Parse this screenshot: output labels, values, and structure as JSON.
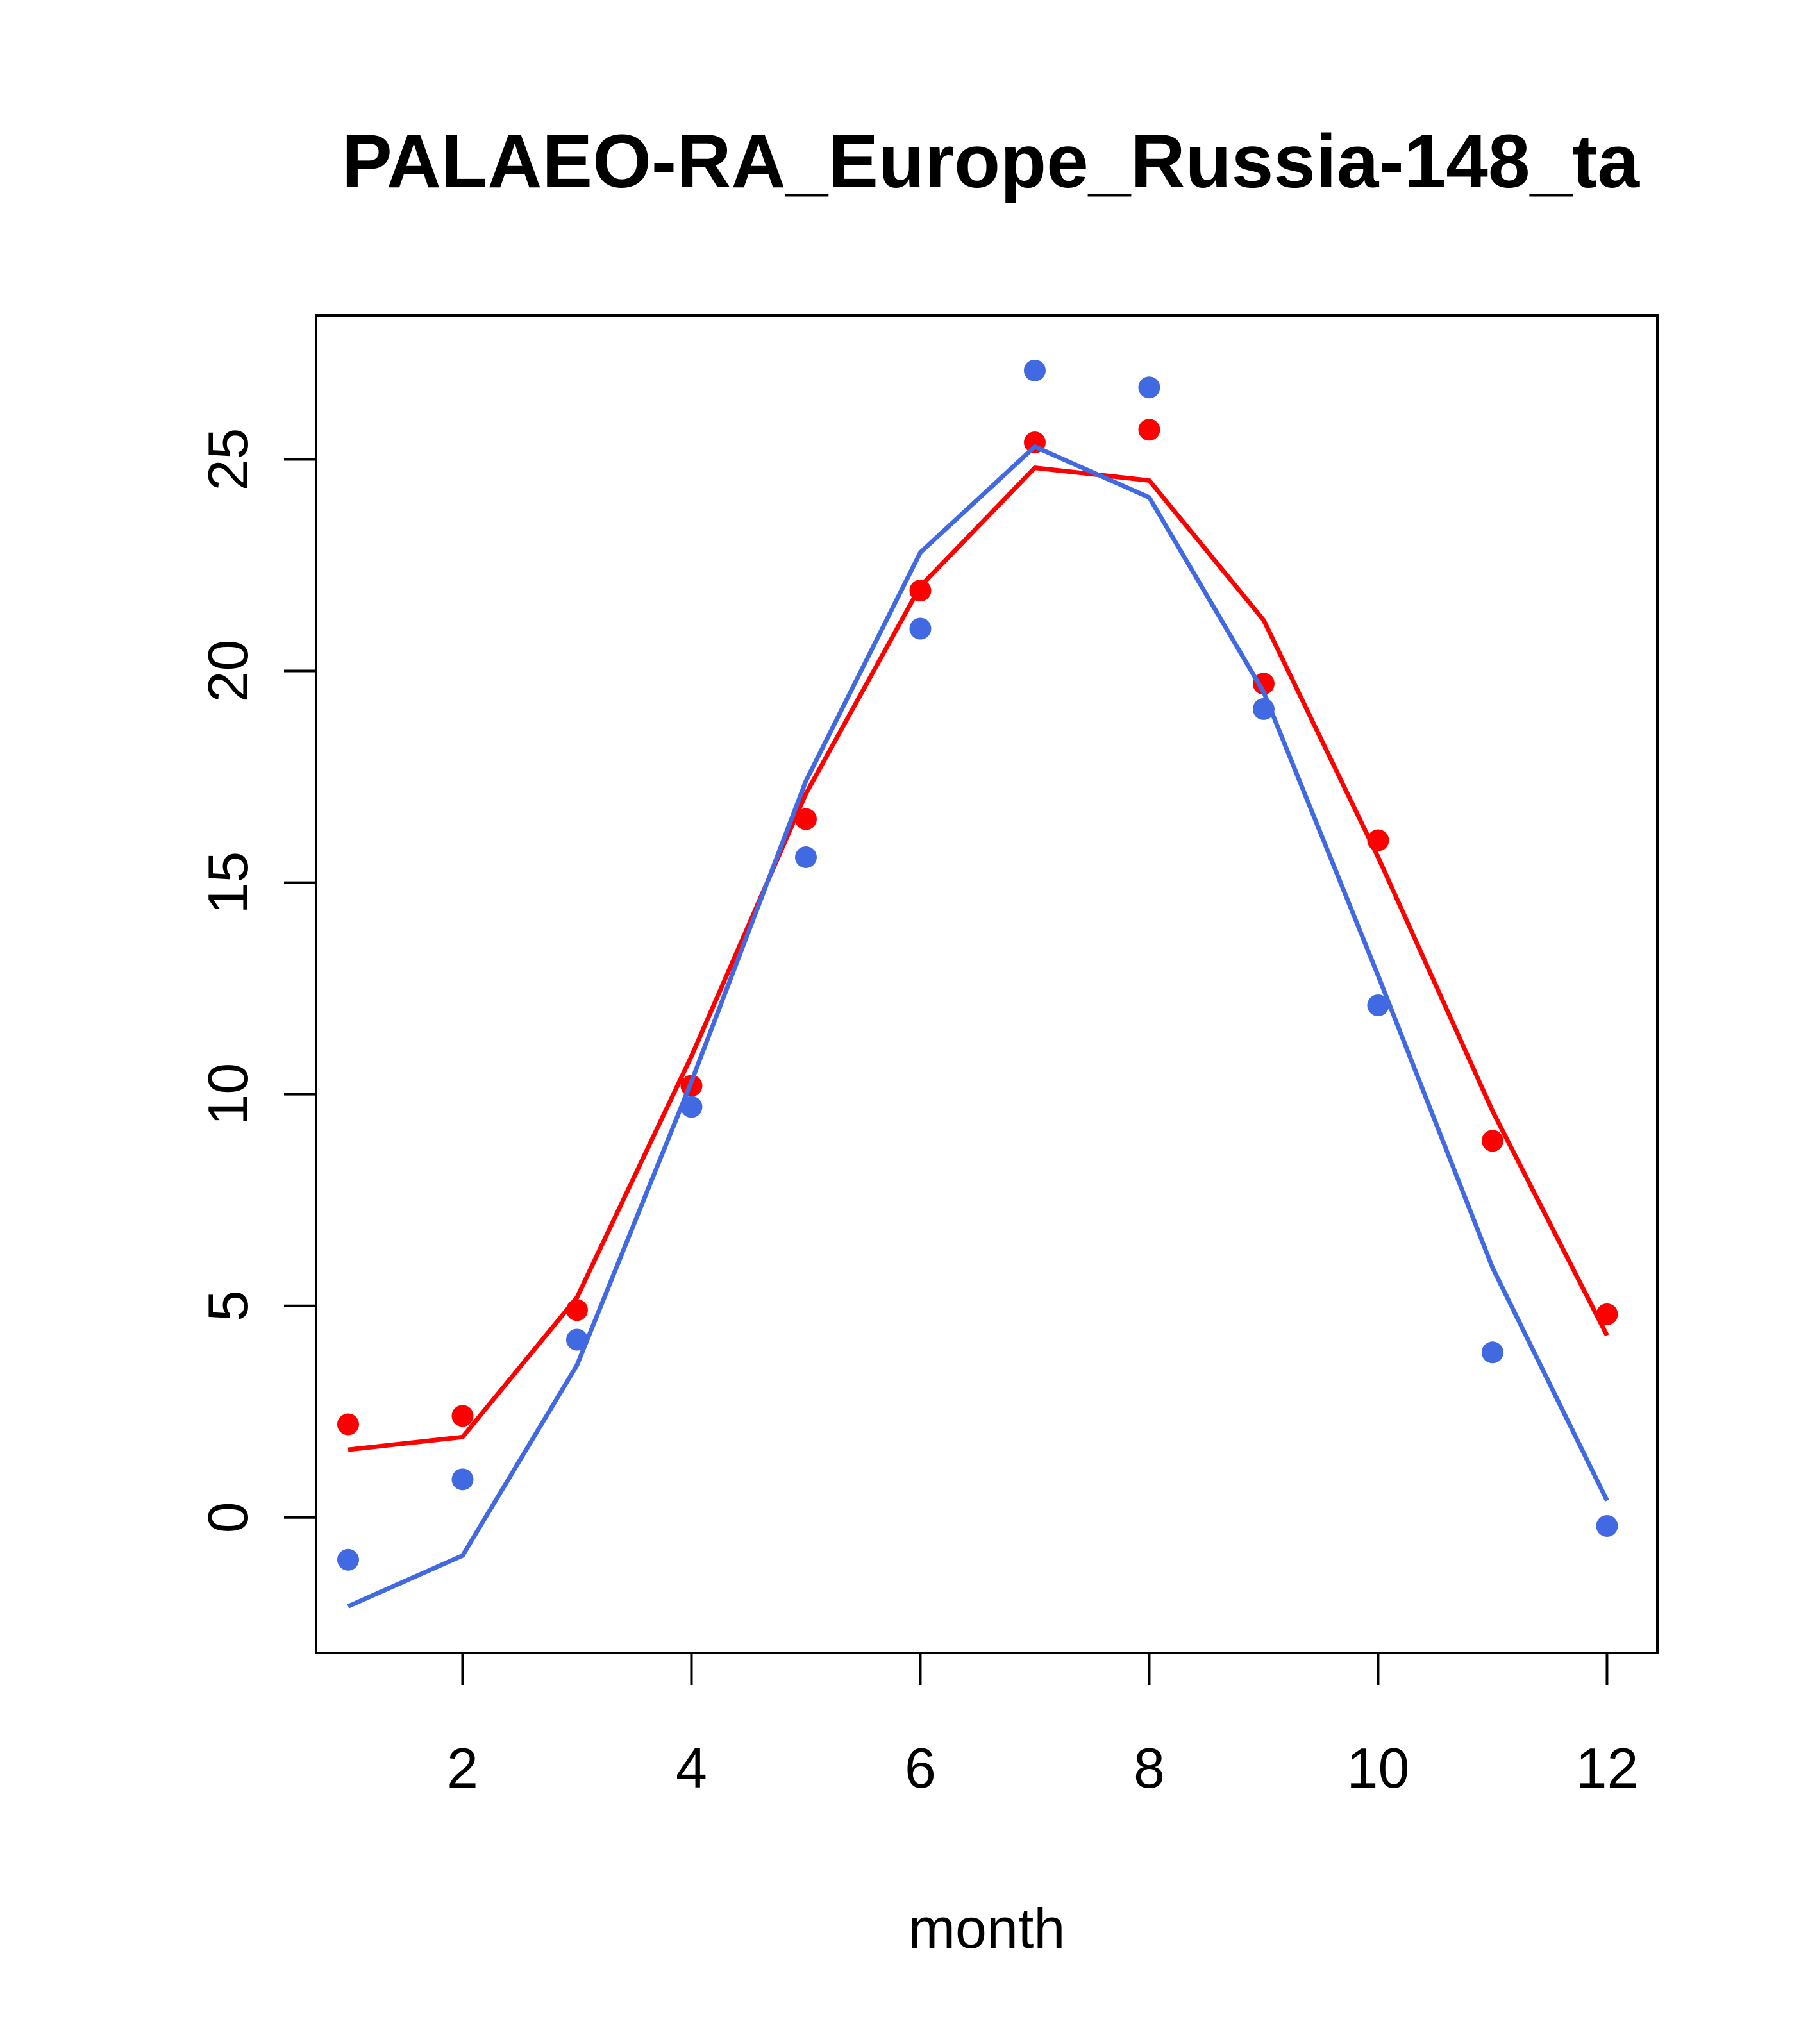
{
  "chart_data": {
    "type": "line",
    "title": "PALAEO-RA_Europe_Russia-148_ta",
    "xlabel": "month",
    "ylabel": "",
    "xlim": [
      0.72,
      12.44
    ],
    "ylim": [
      -3.2,
      28.4
    ],
    "x_ticks": [
      2,
      4,
      6,
      8,
      10,
      12
    ],
    "y_ticks": [
      0,
      5,
      10,
      15,
      20,
      25
    ],
    "grid": false,
    "legend": "none",
    "series": [
      {
        "color": "#ff0000",
        "x": [
          1,
          2,
          3,
          4,
          5,
          6,
          7,
          8,
          9,
          10,
          11,
          12
        ],
        "points": [
          2.2,
          2.4,
          4.9,
          10.2,
          16.5,
          21.9,
          25.4,
          25.7,
          19.7,
          16.0,
          8.9,
          4.8
        ],
        "line": [
          1.6,
          1.9,
          5.2,
          10.9,
          17.1,
          22.0,
          24.8,
          24.5,
          21.2,
          15.6,
          9.6,
          4.3
        ]
      },
      {
        "color": "#4169e1",
        "x": [
          1,
          2,
          3,
          4,
          5,
          6,
          7,
          8,
          9,
          10,
          11,
          12
        ],
        "points": [
          -1.0,
          0.9,
          4.2,
          9.7,
          15.6,
          21.0,
          27.1,
          26.7,
          19.1,
          12.1,
          3.9,
          -0.2
        ],
        "line": [
          -2.1,
          -0.9,
          3.6,
          10.3,
          17.4,
          22.8,
          25.3,
          24.1,
          19.5,
          12.8,
          5.9,
          0.4
        ]
      }
    ]
  }
}
